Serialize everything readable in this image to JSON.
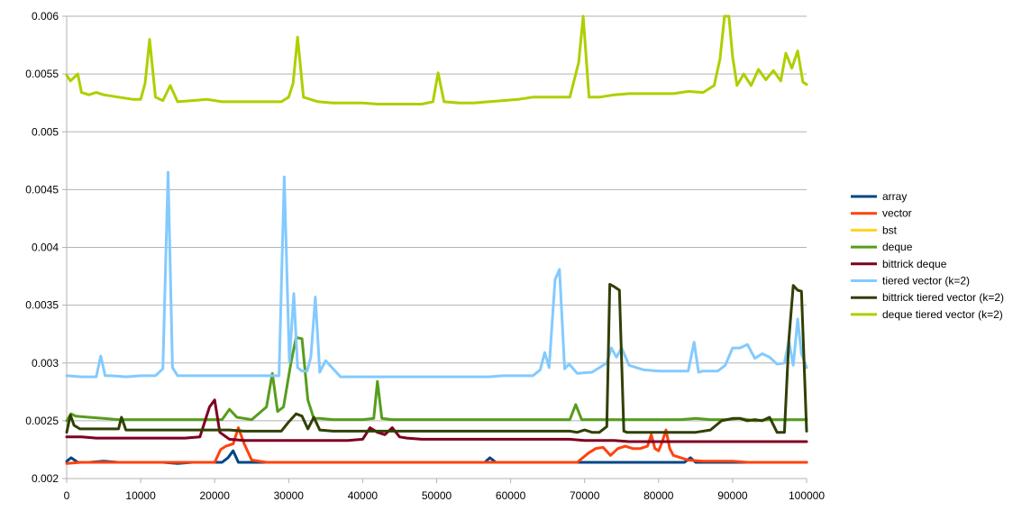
{
  "chart_data": {
    "type": "line",
    "title": "",
    "xlabel": "",
    "ylabel": "",
    "xlim": [
      0,
      100000
    ],
    "ylim": [
      0.002,
      0.006
    ],
    "x_ticks": [
      0,
      10000,
      20000,
      30000,
      40000,
      50000,
      60000,
      70000,
      80000,
      90000,
      100000
    ],
    "x_tick_labels": [
      "0",
      "10000",
      "20000",
      "30000",
      "40000",
      "50000",
      "60000",
      "70000",
      "80000",
      "90000",
      "100000"
    ],
    "y_ticks": [
      0.002,
      0.0025,
      0.003,
      0.0035,
      0.004,
      0.0045,
      0.005,
      0.0055,
      0.006
    ],
    "y_tick_labels": [
      "0.002",
      "0.0025",
      "0.003",
      "0.0035",
      "0.004",
      "0.0045",
      "0.005",
      "0.0055",
      "0.006"
    ],
    "grid": "horizontal",
    "legend_position": "right",
    "series": [
      {
        "name": "array",
        "color": "#004586",
        "x": [
          0,
          600,
          1500,
          3000,
          5000,
          7000,
          9000,
          11000,
          13000,
          15000,
          17000,
          19000,
          21000,
          21800,
          22500,
          23200,
          25000,
          27000,
          29000,
          31000,
          33000,
          35000,
          37000,
          39000,
          41000,
          43000,
          45000,
          47000,
          49000,
          51000,
          53000,
          55000,
          56500,
          57200,
          58000,
          60000,
          62000,
          64000,
          66000,
          68000,
          70000,
          72000,
          74000,
          76000,
          78000,
          80000,
          82000,
          83500,
          84300,
          85000,
          87000,
          89000,
          91000,
          93000,
          95000,
          97000,
          99000,
          100000
        ],
        "y": [
          0.00215,
          0.00218,
          0.00214,
          0.00214,
          0.00215,
          0.00214,
          0.00214,
          0.00214,
          0.00214,
          0.00213,
          0.00214,
          0.00214,
          0.00214,
          0.00218,
          0.00224,
          0.00214,
          0.00214,
          0.00214,
          0.00214,
          0.00214,
          0.00214,
          0.00214,
          0.00214,
          0.00214,
          0.00214,
          0.00214,
          0.00214,
          0.00214,
          0.00214,
          0.00214,
          0.00214,
          0.00214,
          0.00214,
          0.00218,
          0.00214,
          0.00214,
          0.00214,
          0.00214,
          0.00214,
          0.00214,
          0.00214,
          0.00214,
          0.00214,
          0.00214,
          0.00214,
          0.00214,
          0.00214,
          0.00214,
          0.00218,
          0.00214,
          0.00214,
          0.00214,
          0.00214,
          0.00214,
          0.00214,
          0.00214,
          0.00214,
          0.00214
        ]
      },
      {
        "name": "vector",
        "color": "#ff420e",
        "x": [
          0,
          2000,
          4000,
          6000,
          8000,
          10000,
          12000,
          14000,
          16000,
          18000,
          20000,
          20800,
          21500,
          22500,
          23200,
          24000,
          25000,
          27000,
          29000,
          31000,
          33000,
          35000,
          37000,
          39000,
          41000,
          43000,
          45000,
          47000,
          49000,
          51000,
          53000,
          55000,
          57000,
          59000,
          61000,
          63000,
          65000,
          67000,
          69000,
          70500,
          71500,
          72500,
          73500,
          74500,
          75500,
          76500,
          77500,
          78500,
          79000,
          79500,
          80000,
          80500,
          81000,
          81500,
          82000,
          84000,
          86000,
          88000,
          90000,
          92000,
          94000,
          96000,
          98000,
          100000
        ],
        "y": [
          0.00213,
          0.00214,
          0.00214,
          0.00214,
          0.00214,
          0.00214,
          0.00214,
          0.00214,
          0.00214,
          0.00214,
          0.00214,
          0.00225,
          0.00228,
          0.0023,
          0.00244,
          0.0023,
          0.00216,
          0.00214,
          0.00214,
          0.00214,
          0.00214,
          0.00214,
          0.00214,
          0.00214,
          0.00214,
          0.00214,
          0.00214,
          0.00214,
          0.00214,
          0.00214,
          0.00214,
          0.00214,
          0.00214,
          0.00214,
          0.00214,
          0.00214,
          0.00214,
          0.00214,
          0.00214,
          0.00222,
          0.00226,
          0.00227,
          0.0022,
          0.00226,
          0.00228,
          0.00226,
          0.00226,
          0.00228,
          0.00238,
          0.00226,
          0.00224,
          0.00232,
          0.00242,
          0.00226,
          0.0022,
          0.00216,
          0.00215,
          0.00215,
          0.00215,
          0.00214,
          0.00214,
          0.00214,
          0.00214,
          0.00214
        ]
      },
      {
        "name": "bst",
        "color": "#ffd320",
        "x": [],
        "y": []
      },
      {
        "name": "deque",
        "color": "#579d1c",
        "x": [
          0,
          600,
          1200,
          3000,
          5000,
          7000,
          10000,
          13000,
          16000,
          19000,
          21000,
          22000,
          23000,
          25000,
          27000,
          27800,
          28500,
          29300,
          30300,
          31000,
          31800,
          32600,
          33400,
          34200,
          36000,
          38000,
          40000,
          41500,
          42000,
          42600,
          44000,
          46000,
          48000,
          50000,
          52000,
          54000,
          56000,
          58000,
          60000,
          62000,
          64000,
          66000,
          68000,
          68800,
          69600,
          71000,
          73000,
          75000,
          77000,
          79000,
          81000,
          83000,
          85000,
          87000,
          89000,
          91000,
          93000,
          95000,
          97000,
          99000,
          100000
        ],
        "y": [
          0.0025,
          0.00256,
          0.00254,
          0.00253,
          0.00252,
          0.00251,
          0.00251,
          0.00251,
          0.00251,
          0.00251,
          0.00251,
          0.0026,
          0.00253,
          0.00251,
          0.00262,
          0.00291,
          0.00258,
          0.00262,
          0.003,
          0.00322,
          0.00321,
          0.00268,
          0.00252,
          0.00252,
          0.00251,
          0.00251,
          0.00251,
          0.00252,
          0.00284,
          0.00252,
          0.00251,
          0.00251,
          0.00251,
          0.00251,
          0.00251,
          0.00251,
          0.00251,
          0.00251,
          0.00251,
          0.00251,
          0.00251,
          0.00251,
          0.00251,
          0.00264,
          0.00251,
          0.00251,
          0.00251,
          0.00251,
          0.00251,
          0.00251,
          0.00251,
          0.00251,
          0.00252,
          0.00251,
          0.00251,
          0.00252,
          0.0025,
          0.00251,
          0.00251,
          0.00251,
          0.00251
        ]
      },
      {
        "name": "bittrick deque",
        "color": "#7e0021",
        "x": [
          0,
          2000,
          4000,
          6000,
          8000,
          10000,
          12000,
          14000,
          16000,
          18000,
          19300,
          20000,
          20700,
          22000,
          24000,
          26000,
          28000,
          30000,
          32000,
          34000,
          36000,
          38000,
          40000,
          41000,
          42000,
          43000,
          44000,
          45000,
          46000,
          48000,
          50000,
          52000,
          54000,
          56000,
          58000,
          60000,
          62000,
          64000,
          66000,
          68000,
          70000,
          72000,
          74000,
          76000,
          78000,
          80000,
          82000,
          84000,
          86000,
          88000,
          90000,
          92000,
          94000,
          96000,
          98000,
          100000
        ],
        "y": [
          0.00236,
          0.00236,
          0.00235,
          0.00235,
          0.00235,
          0.00235,
          0.00235,
          0.00235,
          0.00235,
          0.00236,
          0.00262,
          0.00268,
          0.0024,
          0.00234,
          0.00233,
          0.00233,
          0.00233,
          0.00233,
          0.00233,
          0.00233,
          0.00233,
          0.00233,
          0.00234,
          0.00244,
          0.0024,
          0.00238,
          0.00244,
          0.00236,
          0.00235,
          0.00234,
          0.00234,
          0.00234,
          0.00234,
          0.00234,
          0.00234,
          0.00234,
          0.00234,
          0.00234,
          0.00234,
          0.00234,
          0.00233,
          0.00233,
          0.00233,
          0.00232,
          0.00232,
          0.00232,
          0.00232,
          0.00232,
          0.00232,
          0.00232,
          0.00232,
          0.00232,
          0.00232,
          0.00232,
          0.00232,
          0.00232
        ]
      },
      {
        "name": "tiered vector (k=2)",
        "color": "#83caff",
        "x": [
          0,
          2000,
          4000,
          4600,
          5200,
          6000,
          8000,
          10000,
          12000,
          13000,
          13700,
          14300,
          15000,
          17000,
          19000,
          21000,
          23000,
          25000,
          27000,
          28700,
          29400,
          30100,
          30700,
          31200,
          31800,
          32500,
          33000,
          33600,
          34200,
          35000,
          37000,
          39000,
          41000,
          43000,
          45000,
          47000,
          49000,
          51000,
          53000,
          55000,
          57000,
          59000,
          61000,
          63000,
          64000,
          64600,
          65200,
          66000,
          66600,
          67300,
          67900,
          69000,
          71000,
          73000,
          73600,
          74300,
          75000,
          76000,
          78000,
          80000,
          82000,
          84000,
          84800,
          85400,
          86000,
          88000,
          89000,
          90000,
          91000,
          92000,
          93000,
          94000,
          95000,
          96000,
          97000,
          97600,
          98200,
          98800,
          99300,
          100000
        ],
        "y": [
          0.00289,
          0.00288,
          0.00288,
          0.00306,
          0.00289,
          0.00289,
          0.00288,
          0.00289,
          0.00289,
          0.00295,
          0.00465,
          0.00296,
          0.00289,
          0.00289,
          0.00289,
          0.00289,
          0.00289,
          0.00289,
          0.00289,
          0.00289,
          0.00461,
          0.00301,
          0.0036,
          0.00296,
          0.00293,
          0.00293,
          0.00305,
          0.00357,
          0.00292,
          0.00302,
          0.00288,
          0.00288,
          0.00288,
          0.00288,
          0.00288,
          0.00288,
          0.00288,
          0.00288,
          0.00288,
          0.00288,
          0.00288,
          0.00289,
          0.00289,
          0.00289,
          0.00294,
          0.00309,
          0.00296,
          0.00372,
          0.00381,
          0.00295,
          0.00299,
          0.00291,
          0.00292,
          0.003,
          0.00313,
          0.00305,
          0.00313,
          0.00298,
          0.00294,
          0.00293,
          0.00293,
          0.00293,
          0.00318,
          0.00292,
          0.00293,
          0.00293,
          0.00298,
          0.00313,
          0.00313,
          0.00316,
          0.00304,
          0.00308,
          0.00305,
          0.00299,
          0.003,
          0.00319,
          0.00298,
          0.00338,
          0.00308,
          0.00296
        ]
      },
      {
        "name": "bittrick tiered vector (k=2)",
        "color": "#314004",
        "x": [
          0,
          500,
          1000,
          1800,
          3000,
          5000,
          7000,
          7400,
          8000,
          10000,
          12000,
          14000,
          16000,
          18000,
          20000,
          22000,
          24000,
          26000,
          28000,
          29000,
          30000,
          31000,
          31800,
          32600,
          33400,
          34200,
          36000,
          38000,
          40000,
          42000,
          44000,
          46000,
          48000,
          50000,
          52000,
          54000,
          56000,
          58000,
          60000,
          62000,
          64000,
          66000,
          68000,
          69000,
          70000,
          71000,
          72000,
          73000,
          73400,
          74000,
          74700,
          75300,
          75700,
          77000,
          79000,
          81000,
          83000,
          85000,
          87000,
          88500,
          90000,
          91000,
          92000,
          93000,
          94000,
          95000,
          96000,
          97000,
          97600,
          98200,
          98800,
          99300,
          100000
        ],
        "y": [
          0.0024,
          0.00255,
          0.00246,
          0.00243,
          0.00243,
          0.00243,
          0.00243,
          0.00253,
          0.00242,
          0.00242,
          0.00242,
          0.00242,
          0.00242,
          0.00242,
          0.00242,
          0.00242,
          0.00241,
          0.00241,
          0.00241,
          0.00241,
          0.00249,
          0.00256,
          0.00254,
          0.00243,
          0.00253,
          0.00242,
          0.00241,
          0.00241,
          0.00241,
          0.00241,
          0.00241,
          0.00241,
          0.00241,
          0.00241,
          0.00241,
          0.00241,
          0.00241,
          0.00241,
          0.00241,
          0.00241,
          0.00241,
          0.00241,
          0.00241,
          0.0024,
          0.00242,
          0.0024,
          0.0024,
          0.00245,
          0.00368,
          0.00366,
          0.00363,
          0.00241,
          0.0024,
          0.0024,
          0.0024,
          0.0024,
          0.0024,
          0.0024,
          0.00242,
          0.0025,
          0.00252,
          0.00252,
          0.0025,
          0.00251,
          0.0025,
          0.00253,
          0.0024,
          0.0024,
          0.0032,
          0.00367,
          0.00363,
          0.00362,
          0.00241
        ]
      },
      {
        "name": "deque tiered vector (k=2)",
        "color": "#aecf00",
        "x": [
          0,
          500,
          1500,
          2000,
          3000,
          4000,
          5000,
          7000,
          9000,
          10000,
          10600,
          11200,
          12000,
          13000,
          14000,
          15000,
          17000,
          19000,
          21000,
          23000,
          25000,
          27000,
          29000,
          30000,
          30600,
          31200,
          32000,
          34000,
          36000,
          38000,
          40000,
          42000,
          44000,
          46000,
          48000,
          49500,
          50200,
          51000,
          53000,
          55000,
          57000,
          59000,
          61000,
          63000,
          65000,
          68000,
          69200,
          69800,
          70600,
          72000,
          74000,
          76000,
          78000,
          80000,
          82000,
          84000,
          86000,
          87500,
          88300,
          88900,
          89500,
          90000,
          90600,
          91500,
          92500,
          93500,
          94500,
          95500,
          96500,
          97200,
          98000,
          98800,
          99500,
          100000
        ],
        "y": [
          0.00549,
          0.00544,
          0.0055,
          0.00534,
          0.00532,
          0.00534,
          0.00532,
          0.0053,
          0.00528,
          0.00528,
          0.00542,
          0.0058,
          0.0053,
          0.00527,
          0.0054,
          0.00526,
          0.00527,
          0.00528,
          0.00526,
          0.00526,
          0.00526,
          0.00526,
          0.00526,
          0.0053,
          0.00542,
          0.00582,
          0.0053,
          0.00526,
          0.00525,
          0.00525,
          0.00525,
          0.00524,
          0.00524,
          0.00524,
          0.00524,
          0.00526,
          0.00551,
          0.00526,
          0.00525,
          0.00525,
          0.00526,
          0.00527,
          0.00528,
          0.0053,
          0.0053,
          0.0053,
          0.0056,
          0.00601,
          0.0053,
          0.0053,
          0.00532,
          0.00533,
          0.00533,
          0.00533,
          0.00533,
          0.00535,
          0.00534,
          0.0054,
          0.00563,
          0.00602,
          0.00602,
          0.00565,
          0.0054,
          0.0055,
          0.0054,
          0.00554,
          0.00545,
          0.00553,
          0.00544,
          0.00568,
          0.00555,
          0.0057,
          0.00543,
          0.00541
        ]
      }
    ]
  }
}
